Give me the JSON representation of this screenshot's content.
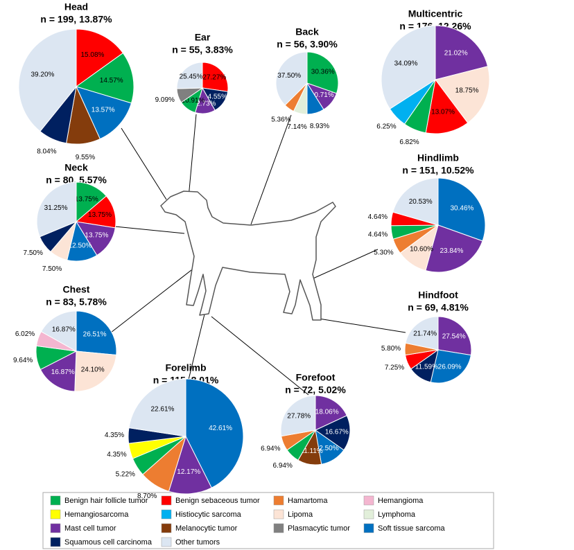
{
  "chart_data": [
    {
      "type": "pie",
      "title": "Head",
      "subtitle": "n = 199, 13.87%",
      "values": [
        15.08,
        14.57,
        13.57,
        9.55,
        8.04,
        39.2
      ],
      "value_labels": [
        "15.08%",
        "14.57%",
        "13.57%",
        "9.55%",
        "8.04%",
        "39.20%"
      ],
      "colors": [
        "#ff0000",
        "#00b050",
        "#0070c0",
        "#843c0c",
        "#002060",
        "#dce6f2"
      ]
    },
    {
      "type": "pie",
      "title": "Ear",
      "subtitle": "n = 55, 3.83%",
      "values": [
        27.27,
        14.55,
        12.73,
        10.91,
        9.09,
        25.45
      ],
      "value_labels": [
        "27.27%",
        "14.55%",
        "12.73%",
        "10.91%",
        "9.09%",
        "25.45%"
      ],
      "colors": [
        "#ff0000",
        "#002060",
        "#7030a0",
        "#00b050",
        "#808080",
        "#dce6f2"
      ]
    },
    {
      "type": "pie",
      "title": "Back",
      "subtitle": "n = 56, 3.90%",
      "values": [
        30.36,
        10.71,
        8.93,
        7.14,
        5.36,
        37.5
      ],
      "value_labels": [
        "30.36%",
        "10.71%",
        "8.93%",
        "7.14%",
        "5.36%",
        "37.50%"
      ],
      "colors": [
        "#00b050",
        "#7030a0",
        "#0070c0",
        "#e2efda",
        "#ed7d31",
        "#dce6f2"
      ]
    },
    {
      "type": "pie",
      "title": "Multicentric",
      "subtitle": "n = 176, 12.26%",
      "values": [
        21.02,
        18.75,
        13.07,
        6.82,
        6.25,
        34.09
      ],
      "value_labels": [
        "21.02%",
        "18.75%",
        "13.07%",
        "6.82%",
        "6.25%",
        "34.09%"
      ],
      "colors": [
        "#7030a0",
        "#fce4d6",
        "#ff0000",
        "#00b050",
        "#00b0f0",
        "#dce6f2"
      ]
    },
    {
      "type": "pie",
      "title": "Neck",
      "subtitle": "n = 80, 5.57%",
      "values": [
        13.75,
        13.75,
        13.75,
        12.5,
        7.5,
        7.5,
        31.25
      ],
      "value_labels": [
        "13.75%",
        "13.75%",
        "13.75%",
        "12.50%",
        "7.50%",
        "7.50%",
        "31.25%"
      ],
      "colors": [
        "#00b050",
        "#ff0000",
        "#7030a0",
        "#0070c0",
        "#fce4d6",
        "#002060",
        "#dce6f2"
      ]
    },
    {
      "type": "pie",
      "title": "Hindlimb",
      "subtitle": "n = 151, 10.52%",
      "values": [
        30.46,
        23.84,
        10.6,
        5.3,
        4.64,
        4.64,
        20.53
      ],
      "value_labels": [
        "30.46%",
        "23.84%",
        "10.60%",
        "5.30%",
        "4.64%",
        "4.64%",
        "20.53%"
      ],
      "colors": [
        "#0070c0",
        "#7030a0",
        "#fce4d6",
        "#ed7d31",
        "#00b050",
        "#ff0000",
        "#dce6f2"
      ]
    },
    {
      "type": "pie",
      "title": "Chest",
      "subtitle": "n = 83, 5.78%",
      "values": [
        26.51,
        24.1,
        16.87,
        9.64,
        6.02,
        16.87
      ],
      "value_labels": [
        "26.51%",
        "24.10%",
        "16.87%",
        "9.64%",
        "6.02%",
        "16.87%"
      ],
      "colors": [
        "#0070c0",
        "#fce4d6",
        "#7030a0",
        "#00b050",
        "#f4b6d0",
        "#dce6f2"
      ]
    },
    {
      "type": "pie",
      "title": "Hindfoot",
      "subtitle": "n = 69, 4.81%",
      "values": [
        27.54,
        26.09,
        11.59,
        7.25,
        5.8,
        21.74
      ],
      "value_labels": [
        "27.54%",
        "26.09%",
        "11.59%",
        "7.25%",
        "5.80%",
        "21.74%"
      ],
      "colors": [
        "#7030a0",
        "#0070c0",
        "#002060",
        "#ff0000",
        "#ed7d31",
        "#dce6f2"
      ]
    },
    {
      "type": "pie",
      "title": "Forelimb",
      "subtitle": "n = 115, 8.01%",
      "values": [
        42.61,
        12.17,
        8.7,
        5.22,
        4.35,
        4.35,
        22.61
      ],
      "value_labels": [
        "42.61%",
        "12.17%",
        "8.70%",
        "5.22%",
        "4.35%",
        "4.35%",
        "22.61%"
      ],
      "colors": [
        "#0070c0",
        "#7030a0",
        "#ed7d31",
        "#00b050",
        "#ffff00",
        "#002060",
        "#dce6f2"
      ]
    },
    {
      "type": "pie",
      "title": "Forefoot",
      "subtitle": "n = 72, 5.02%",
      "values": [
        18.06,
        16.67,
        12.5,
        11.11,
        6.94,
        6.94,
        27.78
      ],
      "value_labels": [
        "18.06%",
        "16.67%",
        "12.50%",
        "11.11%",
        "6.94%",
        "6.94%",
        "27.78%"
      ],
      "colors": [
        "#7030a0",
        "#002060",
        "#0070c0",
        "#843c0c",
        "#00b050",
        "#ed7d31",
        "#dce6f2"
      ]
    }
  ],
  "legend": [
    {
      "name": "Benign hair follicle tumor",
      "color": "#00b050"
    },
    {
      "name": "Benign sebaceous tumor",
      "color": "#ff0000"
    },
    {
      "name": "Hamartoma",
      "color": "#ed7d31"
    },
    {
      "name": "Hemangioma",
      "color": "#f4b6d0"
    },
    {
      "name": "Hemangiosarcoma",
      "color": "#ffff00"
    },
    {
      "name": "Histiocytic sarcoma",
      "color": "#00b0f0"
    },
    {
      "name": "Lipoma",
      "color": "#fce4d6"
    },
    {
      "name": "Lymphoma",
      "color": "#e2efda"
    },
    {
      "name": "Mast cell tumor",
      "color": "#7030a0"
    },
    {
      "name": "Melanocytic tumor",
      "color": "#843c0c"
    },
    {
      "name": "Plasmacytic tumor",
      "color": "#808080"
    },
    {
      "name": "Soft tissue sarcoma",
      "color": "#0070c0"
    },
    {
      "name": "Squamous cell carcinoma",
      "color": "#002060"
    },
    {
      "name": "Other tumors",
      "color": "#dce6f2"
    }
  ]
}
